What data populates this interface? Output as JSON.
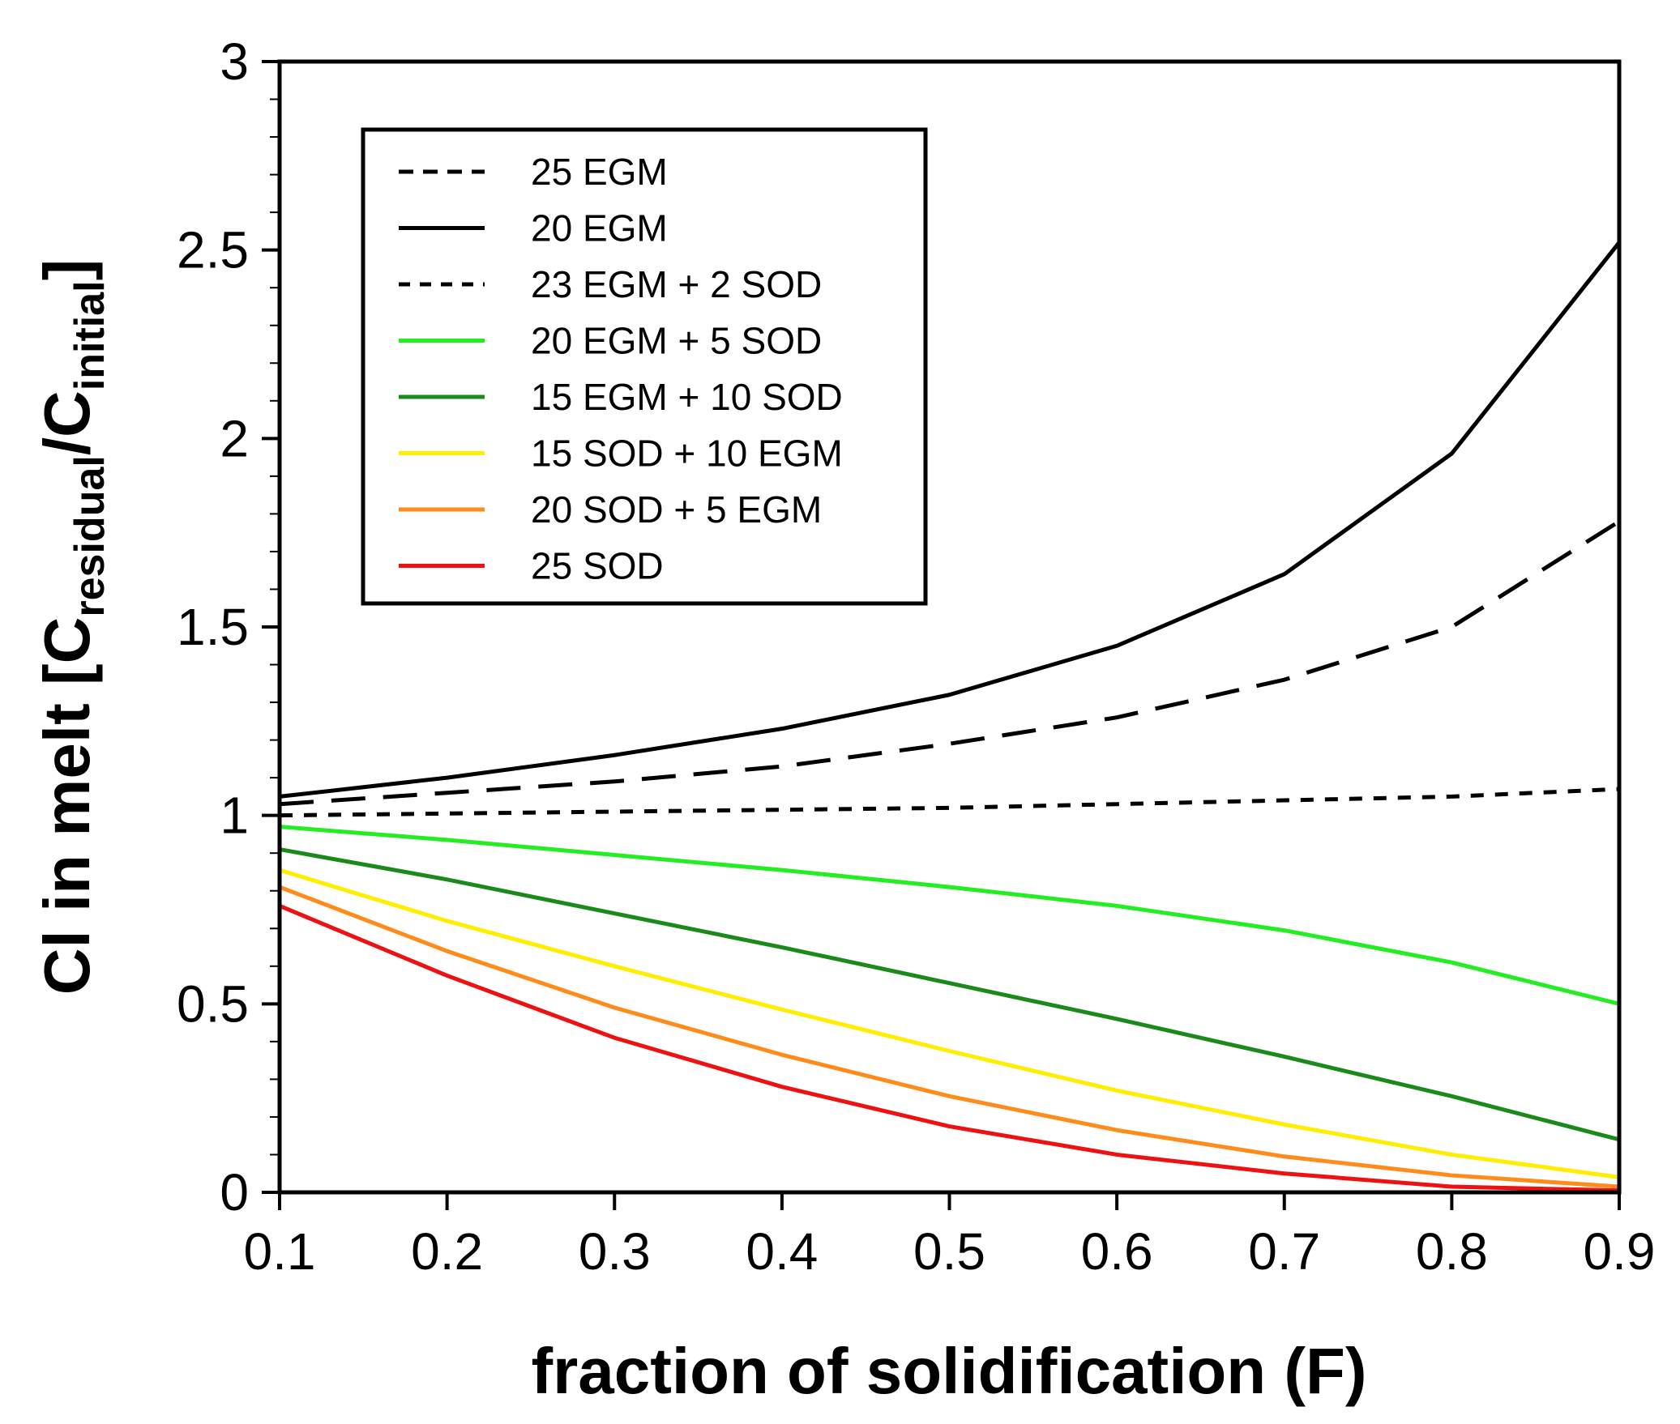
{
  "chart_data": {
    "type": "line",
    "title": "",
    "xlabel": "fraction of solidification (F)",
    "ylabel": {
      "main": "Cl in melt [C",
      "sub1": "residual",
      "mid": "/C",
      "sub2": "initial",
      "end": "]"
    },
    "xlim": [
      0.1,
      0.9
    ],
    "ylim": [
      0,
      3
    ],
    "x_ticks": [
      "0.1",
      "0.2",
      "0.3",
      "0.4",
      "0.5",
      "0.6",
      "0.7",
      "0.8",
      "0.9"
    ],
    "y_ticks": [
      "0",
      "0.5",
      "1",
      "1.5",
      "2",
      "2.5",
      "3"
    ],
    "x_tick_values": [
      0.1,
      0.2,
      0.3,
      0.4,
      0.5,
      0.6,
      0.7,
      0.8,
      0.9
    ],
    "y_tick_values": [
      0,
      0.5,
      1,
      1.5,
      2,
      2.5,
      3
    ],
    "legend_position": "top-left",
    "x": [
      0.1,
      0.2,
      0.3,
      0.4,
      0.5,
      0.6,
      0.7,
      0.8,
      0.9
    ],
    "series": [
      {
        "name": "25 EGM",
        "color": "#000000",
        "dash": "long",
        "values": [
          1.03,
          1.06,
          1.09,
          1.13,
          1.19,
          1.26,
          1.36,
          1.5,
          1.78
        ]
      },
      {
        "name": "20 EGM",
        "color": "#000000",
        "dash": "solid",
        "values": [
          1.05,
          1.1,
          1.16,
          1.23,
          1.32,
          1.45,
          1.64,
          1.96,
          2.52
        ]
      },
      {
        "name": "23 EGM + 2 SOD",
        "color": "#000000",
        "dash": "short",
        "values": [
          1.0,
          1.005,
          1.01,
          1.015,
          1.02,
          1.03,
          1.04,
          1.05,
          1.07
        ]
      },
      {
        "name": "20 EGM + 5 SOD",
        "color": "#22ee22",
        "dash": "solid",
        "values": [
          0.97,
          0.935,
          0.895,
          0.855,
          0.81,
          0.76,
          0.695,
          0.61,
          0.5
        ]
      },
      {
        "name": "15 EGM + 10 SOD",
        "color": "#1a8a1a",
        "dash": "solid",
        "values": [
          0.91,
          0.83,
          0.74,
          0.65,
          0.555,
          0.46,
          0.36,
          0.255,
          0.14
        ]
      },
      {
        "name": "15 SOD + 10 EGM",
        "color": "#ffee00",
        "dash": "solid",
        "values": [
          0.855,
          0.72,
          0.6,
          0.485,
          0.375,
          0.27,
          0.18,
          0.1,
          0.04
        ]
      },
      {
        "name": "20 SOD + 5 EGM",
        "color": "#ff8c1a",
        "dash": "solid",
        "values": [
          0.81,
          0.64,
          0.49,
          0.365,
          0.255,
          0.165,
          0.095,
          0.045,
          0.015
        ]
      },
      {
        "name": "25 SOD",
        "color": "#ee1111",
        "dash": "solid",
        "values": [
          0.76,
          0.575,
          0.41,
          0.28,
          0.175,
          0.1,
          0.05,
          0.015,
          0.005
        ]
      }
    ]
  }
}
